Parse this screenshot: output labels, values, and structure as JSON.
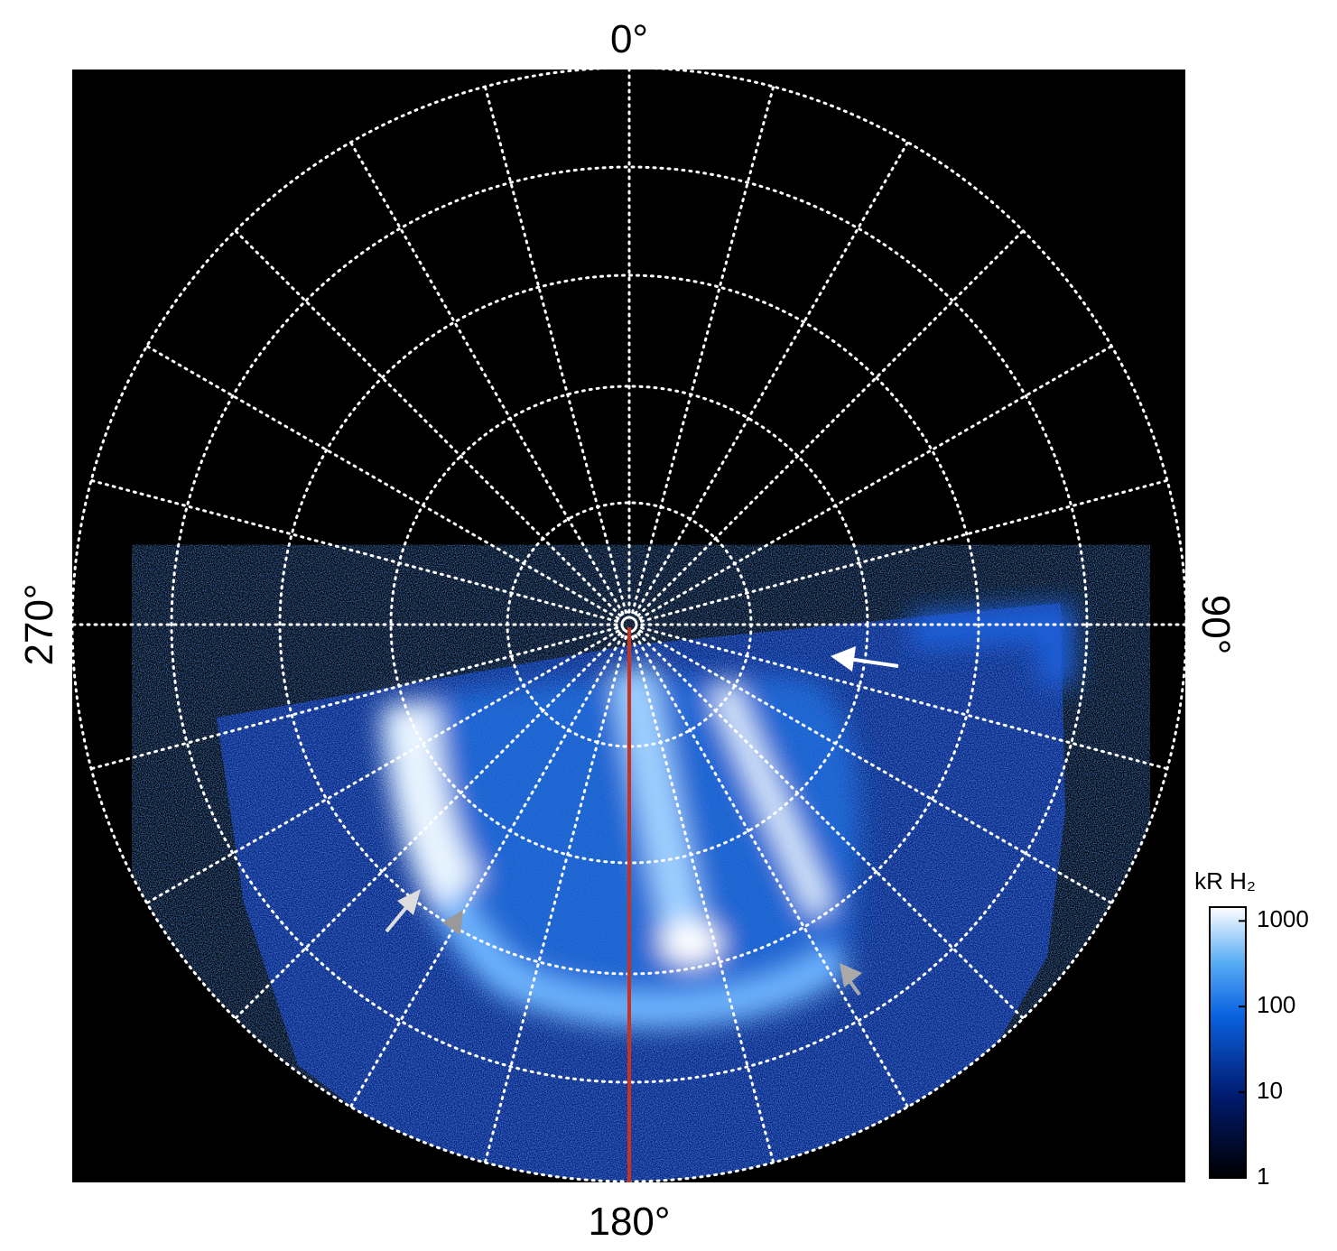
{
  "labels": {
    "top": "0°",
    "right": "90°",
    "bottom": "180°",
    "left": "270°"
  },
  "colorbar": {
    "label": "kR H₂",
    "scale": "log",
    "lim": [
      1,
      1450
    ],
    "ticks": [
      1,
      10,
      100,
      1000
    ]
  }
}
